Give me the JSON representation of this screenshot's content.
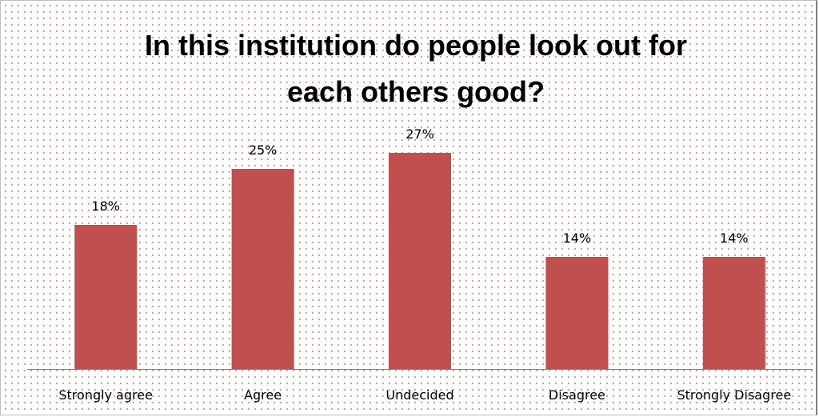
{
  "chart_data": {
    "type": "bar",
    "title": "In this institution do people look out for\neach others good?",
    "categories": [
      "Strongly agree",
      "Agree",
      "Undecided",
      "Disagree",
      "Strongly Disagree"
    ],
    "values": [
      18,
      25,
      27,
      14,
      14
    ],
    "data_labels": [
      "18%",
      "25%",
      "27%",
      "14%",
      "14%"
    ],
    "ylim": [
      0,
      30
    ],
    "grid": false,
    "legend": "none",
    "bar_color": "#C0504D",
    "axis_color": "#808080",
    "background": "dotted"
  }
}
